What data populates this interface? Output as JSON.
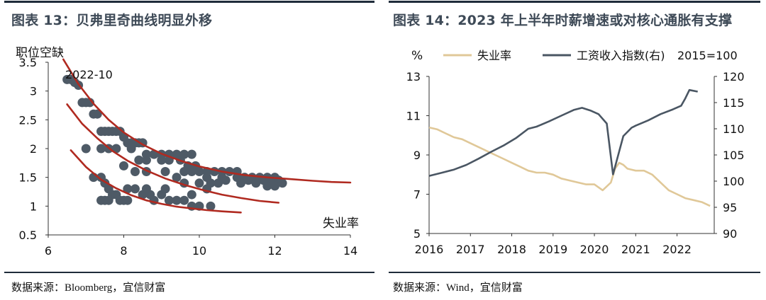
{
  "left_panel": {
    "title": "图表 13：贝弗里奇曲线明显外移",
    "source": "数据来源：Bloomberg，宜信财富"
  },
  "right_panel": {
    "title": "图表 14：2023 年上半年时薪增速或对核心通胀有支撑",
    "source": "数据来源：Wind，宜信财富"
  },
  "colors": {
    "dots": "#4e5a66",
    "curves": "#b02a20",
    "unemployment": "#e0c898",
    "wage": "#4a5663",
    "rule": "#1f2c3a",
    "title": "#3e4a57"
  },
  "chart_data": [
    {
      "type": "scatter",
      "title": "贝弗里奇曲线明显外移",
      "xlabel": "失业率",
      "ylabel": "职位空缺",
      "annotation": "2022-10",
      "xlim": [
        6,
        14
      ],
      "ylim": [
        0.5,
        3.5
      ],
      "xticks": [
        "6",
        "8",
        "10",
        "12",
        "14"
      ],
      "yticks": [
        "0.5",
        "1",
        "1.5",
        "2",
        "2.5",
        "3",
        "3.5"
      ],
      "series": [
        {
          "points": [
            [
              6.5,
              3.2
            ],
            [
              6.6,
              3.2
            ],
            [
              6.7,
              3.15
            ],
            [
              6.8,
              3.1
            ],
            [
              6.9,
              2.8
            ],
            [
              7.0,
              2.8
            ],
            [
              7.1,
              2.8
            ],
            [
              7.2,
              2.6
            ],
            [
              7.3,
              2.6
            ],
            [
              7.4,
              2.3
            ],
            [
              7.5,
              2.3
            ],
            [
              7.6,
              2.3
            ],
            [
              7.7,
              2.3
            ],
            [
              7.8,
              2.3
            ],
            [
              7.9,
              2.3
            ],
            [
              8.0,
              2.2
            ],
            [
              8.1,
              2.1
            ],
            [
              8.2,
              2.1
            ],
            [
              8.3,
              2.1
            ],
            [
              8.4,
              2.1
            ],
            [
              8.5,
              2.1
            ],
            [
              7.0,
              2.0
            ],
            [
              7.4,
              2.0
            ],
            [
              7.6,
              2.0
            ],
            [
              7.8,
              2.0
            ],
            [
              8.2,
              2.0
            ],
            [
              8.6,
              1.9
            ],
            [
              8.8,
              1.9
            ],
            [
              9.0,
              1.9
            ],
            [
              9.2,
              1.9
            ],
            [
              9.4,
              1.9
            ],
            [
              9.6,
              1.9
            ],
            [
              9.8,
              1.9
            ],
            [
              8.4,
              1.8
            ],
            [
              8.6,
              1.8
            ],
            [
              9.0,
              1.8
            ],
            [
              9.2,
              1.8
            ],
            [
              9.5,
              1.8
            ],
            [
              9.7,
              1.7
            ],
            [
              9.9,
              1.7
            ],
            [
              8.0,
              1.7
            ],
            [
              8.3,
              1.6
            ],
            [
              8.6,
              1.6
            ],
            [
              9.1,
              1.6
            ],
            [
              9.6,
              1.6
            ],
            [
              9.8,
              1.6
            ],
            [
              10.0,
              1.6
            ],
            [
              10.2,
              1.6
            ],
            [
              10.4,
              1.6
            ],
            [
              10.6,
              1.6
            ],
            [
              10.8,
              1.6
            ],
            [
              11.0,
              1.6
            ],
            [
              10.2,
              1.5
            ],
            [
              10.6,
              1.5
            ],
            [
              11.0,
              1.5
            ],
            [
              11.2,
              1.5
            ],
            [
              11.4,
              1.5
            ],
            [
              11.6,
              1.5
            ],
            [
              11.8,
              1.5
            ],
            [
              12.0,
              1.5
            ],
            [
              11.3,
              1.45
            ],
            [
              11.7,
              1.45
            ],
            [
              12.1,
              1.45
            ],
            [
              11.1,
              1.4
            ],
            [
              11.5,
              1.4
            ],
            [
              11.9,
              1.4
            ],
            [
              12.2,
              1.4
            ],
            [
              11.8,
              1.35
            ],
            [
              12.0,
              1.35
            ],
            [
              9.4,
              1.5
            ],
            [
              9.6,
              1.4
            ],
            [
              10.0,
              1.4
            ],
            [
              10.3,
              1.4
            ],
            [
              10.5,
              1.4
            ],
            [
              10.7,
              1.45
            ],
            [
              7.2,
              1.5
            ],
            [
              7.4,
              1.5
            ],
            [
              7.5,
              1.4
            ],
            [
              7.6,
              1.3
            ],
            [
              7.4,
              1.1
            ],
            [
              7.5,
              1.1
            ],
            [
              7.6,
              1.1
            ],
            [
              7.7,
              1.2
            ],
            [
              7.8,
              1.2
            ],
            [
              7.9,
              1.1
            ],
            [
              8.0,
              1.1
            ],
            [
              8.1,
              1.1
            ],
            [
              8.1,
              1.3
            ],
            [
              8.3,
              1.3
            ],
            [
              8.5,
              1.2
            ],
            [
              8.7,
              1.2
            ],
            [
              8.6,
              1.3
            ],
            [
              8.8,
              1.1
            ],
            [
              9.0,
              1.2
            ],
            [
              9.2,
              1.1
            ],
            [
              9.4,
              1.1
            ],
            [
              9.6,
              1.1
            ],
            [
              9.8,
              1.0
            ],
            [
              10.0,
              1.0
            ],
            [
              9.8,
              1.2
            ],
            [
              10.2,
              1.3
            ],
            [
              9.1,
              1.3
            ],
            [
              10.3,
              1.0
            ]
          ]
        }
      ],
      "curves": [
        {
          "x": [
            6.4,
            6.8,
            7.2,
            7.6,
            8.0,
            8.5,
            9.0,
            9.5,
            10.0,
            10.6,
            11.2,
            11.8,
            12.4,
            13.0,
            13.5,
            14.0
          ],
          "y": [
            3.55,
            3.12,
            2.78,
            2.5,
            2.28,
            2.07,
            1.91,
            1.79,
            1.69,
            1.6,
            1.54,
            1.5,
            1.47,
            1.44,
            1.42,
            1.41
          ]
        },
        {
          "x": [
            6.5,
            6.9,
            7.3,
            7.7,
            8.1,
            8.6,
            9.1,
            9.6,
            10.1,
            10.6,
            11.1,
            11.6,
            12.1
          ],
          "y": [
            2.77,
            2.43,
            2.18,
            1.96,
            1.79,
            1.62,
            1.48,
            1.37,
            1.28,
            1.2,
            1.14,
            1.09,
            1.06
          ]
        },
        {
          "x": [
            6.6,
            7.0,
            7.4,
            7.8,
            8.2,
            8.6,
            9.0,
            9.4,
            9.8,
            10.2,
            10.6,
            11.1
          ],
          "y": [
            1.97,
            1.68,
            1.46,
            1.31,
            1.19,
            1.1,
            1.04,
            0.99,
            0.96,
            0.93,
            0.91,
            0.89
          ]
        }
      ]
    },
    {
      "type": "line",
      "title": "2023 年上半年时薪增速或对核心通胀有支撑",
      "ylabel_left": "%",
      "ylabel_right": "2015=100",
      "xlim": [
        2016,
        2022.9
      ],
      "ylim_left": [
        5,
        13
      ],
      "ylim_right": [
        90,
        120
      ],
      "xticks": [
        "2016",
        "2017",
        "2018",
        "2019",
        "2020",
        "2021",
        "2022"
      ],
      "yticks_left": [
        "5",
        "7",
        "9",
        "11",
        "13"
      ],
      "yticks_right": [
        "90",
        "95",
        "100",
        "105",
        "110",
        "115",
        "120"
      ],
      "series": [
        {
          "name": "失业率",
          "axis": "left",
          "x": [
            2016.0,
            2016.2,
            2016.4,
            2016.6,
            2016.8,
            2017.0,
            2017.2,
            2017.4,
            2017.6,
            2017.8,
            2018.0,
            2018.2,
            2018.4,
            2018.6,
            2018.8,
            2019.0,
            2019.2,
            2019.4,
            2019.6,
            2019.8,
            2020.0,
            2020.2,
            2020.4,
            2020.5,
            2020.6,
            2020.7,
            2020.8,
            2021.0,
            2021.2,
            2021.4,
            2021.6,
            2021.8,
            2022.0,
            2022.2,
            2022.4,
            2022.6,
            2022.8
          ],
          "values": [
            10.4,
            10.3,
            10.1,
            9.9,
            9.8,
            9.6,
            9.4,
            9.2,
            9.0,
            8.8,
            8.6,
            8.4,
            8.2,
            8.1,
            8.1,
            8.0,
            7.8,
            7.7,
            7.6,
            7.5,
            7.5,
            7.2,
            7.6,
            8.3,
            8.6,
            8.5,
            8.3,
            8.2,
            8.2,
            8.0,
            7.6,
            7.2,
            7.0,
            6.8,
            6.7,
            6.6,
            6.4
          ]
        },
        {
          "name": "工资收入指数(右)",
          "axis": "right",
          "x": [
            2016.0,
            2016.3,
            2016.6,
            2016.9,
            2017.2,
            2017.5,
            2017.8,
            2018.1,
            2018.4,
            2018.6,
            2018.9,
            2019.2,
            2019.5,
            2019.7,
            2019.9,
            2020.1,
            2020.3,
            2020.45,
            2020.7,
            2020.9,
            2021.0,
            2021.3,
            2021.6,
            2021.9,
            2022.1,
            2022.2,
            2022.3,
            2022.5
          ],
          "values": [
            101.0,
            101.6,
            102.2,
            103.1,
            104.3,
            105.6,
            106.8,
            108.2,
            110.0,
            110.4,
            111.4,
            112.5,
            113.6,
            114.0,
            113.5,
            112.8,
            111.0,
            101.3,
            108.6,
            110.2,
            110.6,
            111.6,
            112.8,
            113.7,
            114.4,
            115.8,
            117.4,
            117.1
          ]
        }
      ]
    }
  ]
}
